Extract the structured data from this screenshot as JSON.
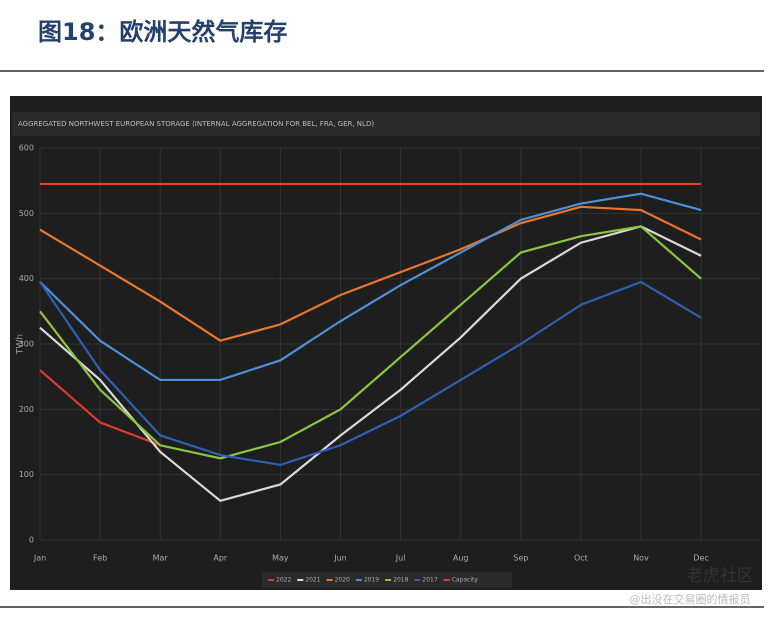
{
  "header": {
    "title": "图18：欧洲天然气库存"
  },
  "watermark": {
    "brand": "老虎社区",
    "author": "@出没在交易圈的情报员"
  },
  "chart_data": {
    "type": "line",
    "title": "AGGREGATED NORTHWEST EUROPEAN STORAGE (INTERNAL AGGREGATION FOR BEL, FRA, GER, NLD)",
    "y_label": "TWh",
    "categories": [
      "Jan",
      "Feb",
      "Mar",
      "Apr",
      "May",
      "Jun",
      "Jul",
      "Aug",
      "Sep",
      "Oct",
      "Nov",
      "Dec"
    ],
    "ylim": [
      0,
      600
    ],
    "yticks": [
      0,
      100,
      200,
      300,
      400,
      500,
      600
    ],
    "grid": true,
    "series": [
      {
        "name": "2022",
        "color": "#e03a2f",
        "values": [
          260,
          180,
          145,
          null,
          null,
          null,
          null,
          null,
          null,
          null,
          null,
          null
        ]
      },
      {
        "name": "2021",
        "color": "#d9d9d9",
        "values": [
          325,
          245,
          135,
          60,
          85,
          160,
          230,
          310,
          400,
          455,
          480,
          435
        ]
      },
      {
        "name": "2020",
        "color": "#e8772e",
        "values": [
          475,
          420,
          365,
          305,
          330,
          375,
          410,
          445,
          485,
          510,
          505,
          460
        ]
      },
      {
        "name": "2019",
        "color": "#4f8fd6",
        "values": [
          395,
          305,
          245,
          245,
          275,
          335,
          390,
          440,
          490,
          515,
          530,
          505
        ]
      },
      {
        "name": "2018",
        "color": "#8cc63f",
        "values": [
          350,
          230,
          145,
          125,
          150,
          200,
          280,
          360,
          440,
          465,
          480,
          400
        ]
      },
      {
        "name": "2017",
        "color": "#2f5fb3",
        "values": [
          395,
          260,
          160,
          130,
          115,
          145,
          190,
          245,
          300,
          360,
          395,
          340
        ]
      },
      {
        "name": "Capacity",
        "color": "#e8402a",
        "values": [
          545,
          545,
          545,
          545,
          545,
          545,
          545,
          545,
          545,
          545,
          545,
          545
        ]
      }
    ]
  }
}
